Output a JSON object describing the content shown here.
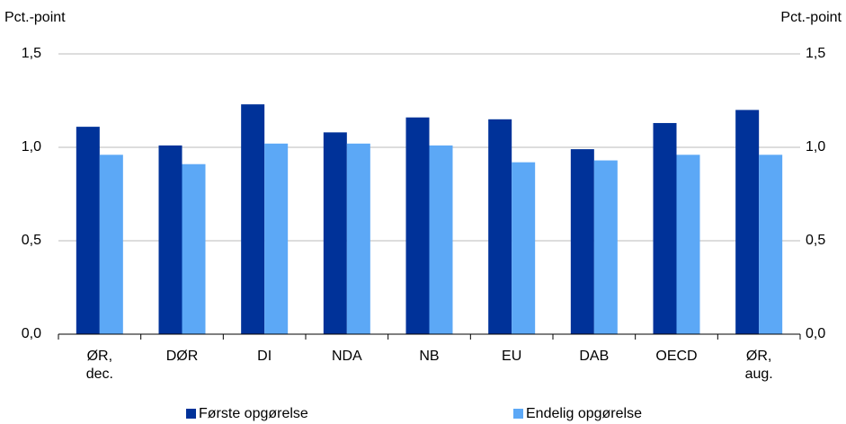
{
  "chart_data": {
    "type": "bar",
    "ylabel": "Pct.-point",
    "y2label": "Pct.-point",
    "categories": [
      "ØR, dec.",
      "DØR",
      "DI",
      "NDA",
      "NB",
      "EU",
      "DAB",
      "OECD",
      "ØR, aug."
    ],
    "series": [
      {
        "name": "Første opgørelse",
        "color": "#003299",
        "values": [
          1.11,
          1.01,
          1.23,
          1.08,
          1.16,
          1.15,
          0.99,
          1.13,
          1.2
        ]
      },
      {
        "name": "Endelig opgørelse",
        "color": "#5ca8f6",
        "values": [
          0.96,
          0.91,
          1.02,
          1.02,
          1.01,
          0.92,
          0.93,
          0.96,
          0.96
        ]
      }
    ],
    "ylim": [
      0,
      1.5
    ],
    "yticks": [
      {
        "value": 0,
        "label": "0,0"
      },
      {
        "value": 0.5,
        "label": "0,5"
      },
      {
        "value": 1,
        "label": "1,0"
      },
      {
        "value": 1.5,
        "label": "1,5"
      }
    ],
    "y2lim": [
      0,
      1.5
    ],
    "y2ticks": [
      {
        "value": 0,
        "label": "0,0"
      },
      {
        "value": 0.5,
        "label": "0,5"
      },
      {
        "value": 1,
        "label": "1,0"
      },
      {
        "value": 1.5,
        "label": "1,5"
      }
    ],
    "grid": true
  }
}
